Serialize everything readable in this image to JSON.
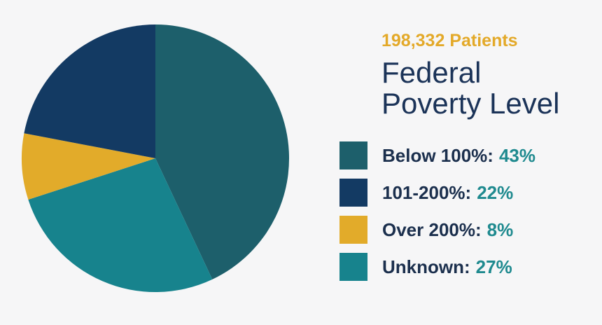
{
  "chart_data": {
    "type": "pie",
    "subtitle": "198,332 Patients",
    "title": "Federal Poverty Level",
    "categories": [
      "Below 100%:",
      "101-200%:",
      "Over 200%:",
      "Unknown:"
    ],
    "values": [
      43,
      22,
      8,
      27
    ],
    "value_labels": [
      "43%",
      "22%",
      "8%",
      "27%"
    ],
    "colors": [
      "#1d5f6b",
      "#133a63",
      "#e2ab2a",
      "#17838d"
    ],
    "legend": "right"
  }
}
